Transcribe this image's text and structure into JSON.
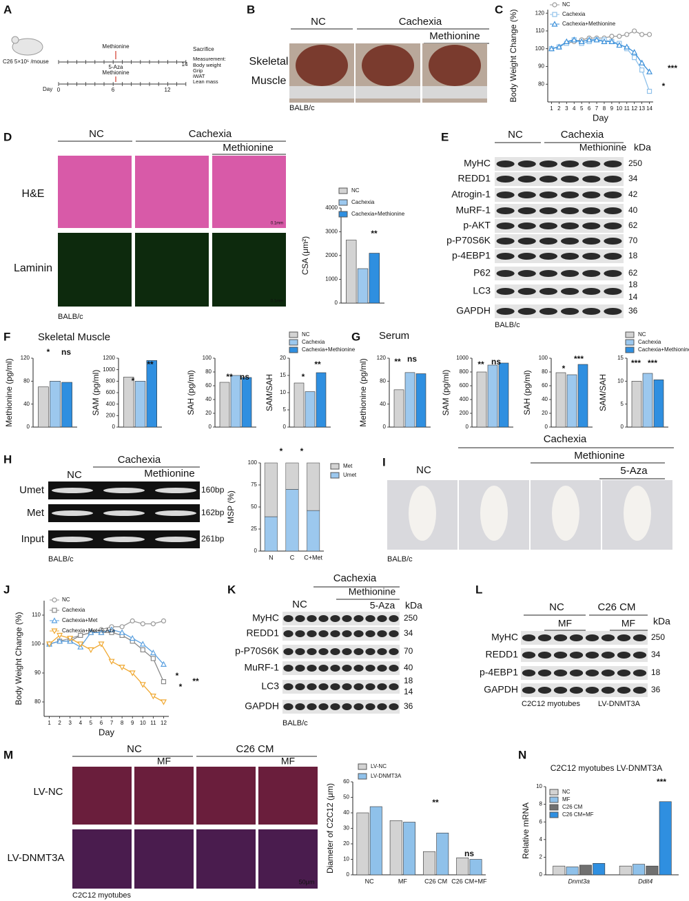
{
  "panel_letters": [
    "A",
    "B",
    "C",
    "D",
    "E",
    "F",
    "G",
    "H",
    "I",
    "J",
    "K",
    "L",
    "M",
    "N"
  ],
  "panel_a": {
    "tumor": "C26 5×10⁵ /mouse",
    "methionine": "Methionine",
    "aza": [
      "5-Aza",
      "Methionine"
    ],
    "day_label": "Day",
    "days": [
      0,
      6,
      12
    ],
    "end_day": 14,
    "sacrifice": "Sacrifice",
    "measurements": [
      "Measurement:",
      "Body weight",
      "Grip",
      "iWAT",
      "Lean mass"
    ]
  },
  "panel_b": {
    "groups": [
      "NC",
      "Cachexia"
    ],
    "treatment": "Methionine",
    "tissue": [
      "Skeletal",
      "Muscle"
    ],
    "strain": "BALB/c"
  },
  "panel_d": {
    "groups": [
      "NC",
      "Cachexia"
    ],
    "treatment": "Methionine",
    "rows": [
      "H&E",
      "Laminin"
    ],
    "scale": "0.1mm",
    "strain": "BALB/c"
  },
  "panel_e": {
    "groups": [
      "NC",
      "Cachexia"
    ],
    "treatment": "Methionine",
    "unit": "kDa",
    "strain": "BALB/c",
    "bands": [
      {
        "name": "MyHC",
        "kda": [
          250
        ]
      },
      {
        "name": "REDD1",
        "kda": [
          34
        ]
      },
      {
        "name": "Atrogin-1",
        "kda": [
          42
        ]
      },
      {
        "name": "MuRF-1",
        "kda": [
          40
        ]
      },
      {
        "name": "p-AKT",
        "kda": [
          62
        ]
      },
      {
        "name": "p-P70S6K",
        "kda": [
          70
        ]
      },
      {
        "name": "p-4EBP1",
        "kda": [
          18
        ]
      },
      {
        "name": "P62",
        "kda": [
          62
        ]
      },
      {
        "name": "LC3",
        "kda": [
          18,
          14
        ]
      },
      {
        "name": "GAPDH",
        "kda": [
          36
        ]
      }
    ]
  },
  "panel_f": {
    "title": "Skeletal Muscle"
  },
  "panel_g": {
    "title": "Serum"
  },
  "panel_h": {
    "nc": "NC",
    "cachexia": "Cachexia",
    "treatment": "Methionine",
    "strain": "BALB/c",
    "bands": [
      {
        "name": "Umet",
        "size": "160bp"
      },
      {
        "name": "Met",
        "size": "162bp"
      },
      {
        "name": "Input",
        "size": "261bp"
      }
    ]
  },
  "panel_i": {
    "cachexia": "Cachexia",
    "methionine": "Methionine",
    "nc": "NC",
    "aza": "5-Aza",
    "strain": "BALB/c"
  },
  "panel_k": {
    "nc": "NC",
    "cachexia": "Cachexia",
    "methionine": "Methionine",
    "aza": "5-Aza",
    "unit": "kDa",
    "strain": "BALB/c",
    "bands": [
      {
        "name": "MyHC",
        "kda": [
          250
        ]
      },
      {
        "name": "REDD1",
        "kda": [
          34
        ]
      },
      {
        "name": "p-P70S6K",
        "kda": [
          70
        ]
      },
      {
        "name": "MuRF-1",
        "kda": [
          40
        ]
      },
      {
        "name": "LC3",
        "kda": [
          18,
          14
        ]
      },
      {
        "name": "GAPDH",
        "kda": [
          36
        ]
      }
    ]
  },
  "panel_l": {
    "nc": "NC",
    "cm": "C26 CM",
    "mf": [
      "MF",
      "MF"
    ],
    "unit": "kDa",
    "footer": [
      "C2C12 myotubes",
      "LV-DNMT3A"
    ],
    "bands": [
      {
        "name": "MyHC",
        "kda": [
          250
        ]
      },
      {
        "name": "REDD1",
        "kda": [
          34
        ]
      },
      {
        "name": "p-4EBP1",
        "kda": [
          18
        ]
      },
      {
        "name": "GAPDH",
        "kda": [
          36
        ]
      }
    ]
  },
  "panel_m": {
    "groups": [
      "NC",
      "C26 CM"
    ],
    "mf": [
      "MF",
      "MF"
    ],
    "rows": [
      "LV-NC",
      "LV-DNMT3A"
    ],
    "scale": "50μm",
    "footer": "C2C12 myotubes"
  },
  "chart_data": [
    {
      "type": "line",
      "ylabel": "Body Weight Change (%)",
      "xlabel": "Day",
      "x": [
        1,
        2,
        3,
        4,
        5,
        6,
        7,
        8,
        9,
        10,
        11,
        12,
        13,
        14
      ],
      "xlim": [
        0.5,
        14.5
      ],
      "xticks": [
        1,
        2,
        3,
        4,
        5,
        6,
        7,
        8,
        9,
        10,
        11,
        12,
        13,
        14
      ],
      "ylim": [
        70,
        122
      ],
      "yticks": [
        80,
        90,
        100,
        110,
        120
      ],
      "series": [
        {
          "name": "NC",
          "color": "#999999",
          "marker": "circle",
          "values": [
            100,
            101,
            103,
            104,
            105,
            106,
            106,
            106,
            107,
            107,
            108,
            110,
            108,
            108
          ]
        },
        {
          "name": "Cachexia",
          "color": "#8fc1ea",
          "marker": "square",
          "values": [
            100,
            101,
            103,
            105,
            103,
            104,
            105,
            105,
            104,
            103,
            100,
            95,
            88,
            76
          ]
        },
        {
          "name": "Cachexia+Methionine",
          "color": "#3a8fd9",
          "marker": "triangle",
          "values": [
            100,
            101,
            104,
            105,
            104,
            105,
            105,
            104,
            104,
            102,
            101,
            98,
            92,
            87
          ]
        }
      ],
      "annotations": [
        "***",
        "*"
      ]
    },
    {
      "type": "bar",
      "ylabel": "CSA (μm²)",
      "categories": [
        null
      ],
      "ylim": [
        0,
        4000
      ],
      "yticks": [
        0,
        1000,
        2000,
        3000,
        4000
      ],
      "series": [
        {
          "name": "NC",
          "color": "#d3d3d3",
          "values": [
            2650
          ]
        },
        {
          "name": "Cachexia",
          "color": "#9cc8ee",
          "values": [
            1450
          ]
        },
        {
          "name": "Cachexia+Methionine",
          "color": "#2f8fe0",
          "values": [
            2100
          ]
        }
      ],
      "annotations": [
        "**"
      ]
    },
    {
      "type": "bar",
      "ylabel": "Methionine (pg/ml)",
      "categories": [
        null
      ],
      "ylim": [
        0,
        120
      ],
      "yticks": [
        0,
        40,
        80,
        120
      ],
      "series": [
        {
          "color": "#d3d3d3",
          "values": [
            70
          ]
        },
        {
          "color": "#9cc8ee",
          "values": [
            80
          ]
        },
        {
          "color": "#2f8fe0",
          "values": [
            78
          ]
        }
      ],
      "annotations": [
        "*",
        "ns"
      ]
    },
    {
      "type": "bar",
      "ylabel": "SAM (pg/ml)",
      "categories": [
        null
      ],
      "ylim": [
        0,
        1200
      ],
      "yticks": [
        0,
        200,
        400,
        600,
        800,
        1000,
        1200
      ],
      "series": [
        {
          "color": "#d3d3d3",
          "values": [
            870
          ]
        },
        {
          "color": "#9cc8ee",
          "values": [
            800
          ]
        },
        {
          "color": "#2f8fe0",
          "values": [
            1160
          ]
        }
      ],
      "annotations": [
        "*",
        "**"
      ]
    },
    {
      "type": "bar",
      "ylabel": "SAH (pg/ml)",
      "categories": [
        null
      ],
      "ylim": [
        0,
        100
      ],
      "yticks": [
        0,
        20,
        40,
        60,
        80,
        100
      ],
      "series": [
        {
          "color": "#d3d3d3",
          "values": [
            65
          ]
        },
        {
          "color": "#9cc8ee",
          "values": [
            75
          ]
        },
        {
          "color": "#2f8fe0",
          "values": [
            72
          ]
        }
      ],
      "annotations": [
        "**",
        "ns"
      ]
    },
    {
      "type": "bar",
      "ylabel": "SAM/SAH",
      "categories": [
        null
      ],
      "ylim": [
        0,
        20
      ],
      "yticks": [
        0,
        5,
        10,
        15,
        20
      ],
      "series": [
        {
          "name": "NC",
          "color": "#d3d3d3",
          "values": [
            12.8
          ]
        },
        {
          "name": "Cachexia",
          "color": "#9cc8ee",
          "values": [
            10.3
          ]
        },
        {
          "name": "Cachexia+Methionine",
          "color": "#2f8fe0",
          "values": [
            15.8
          ]
        }
      ],
      "annotations": [
        "*",
        "**"
      ]
    },
    {
      "type": "bar",
      "ylabel": "Methionine (pg/ml)",
      "categories": [
        null
      ],
      "ylim": [
        0,
        120
      ],
      "yticks": [
        0,
        40,
        80,
        120
      ],
      "series": [
        {
          "color": "#d3d3d3",
          "values": [
            65
          ]
        },
        {
          "color": "#9cc8ee",
          "values": [
            95
          ]
        },
        {
          "color": "#2f8fe0",
          "values": [
            93
          ]
        }
      ],
      "annotations": [
        "**",
        "ns"
      ]
    },
    {
      "type": "bar",
      "ylabel": "SAM (pg/ml)",
      "categories": [
        null
      ],
      "ylim": [
        0,
        1000
      ],
      "yticks": [
        0,
        200,
        400,
        600,
        800,
        1000
      ],
      "series": [
        {
          "color": "#d3d3d3",
          "values": [
            800
          ]
        },
        {
          "color": "#9cc8ee",
          "values": [
            900
          ]
        },
        {
          "color": "#2f8fe0",
          "values": [
            930
          ]
        }
      ],
      "annotations": [
        "**",
        "ns"
      ]
    },
    {
      "type": "bar",
      "ylabel": "SAH (pg/ml)",
      "categories": [
        null
      ],
      "ylim": [
        0,
        100
      ],
      "yticks": [
        0,
        20,
        40,
        60,
        80,
        100
      ],
      "series": [
        {
          "color": "#d3d3d3",
          "values": [
            79
          ]
        },
        {
          "color": "#9cc8ee",
          "values": [
            76
          ]
        },
        {
          "color": "#2f8fe0",
          "values": [
            91
          ]
        }
      ],
      "annotations": [
        "*",
        "***"
      ]
    },
    {
      "type": "bar",
      "ylabel": "SAM/SAH",
      "categories": [
        null
      ],
      "ylim": [
        0,
        15
      ],
      "yticks": [
        0,
        5,
        10,
        15
      ],
      "series": [
        {
          "name": "NC",
          "color": "#d3d3d3",
          "values": [
            10
          ]
        },
        {
          "name": "Cachexia",
          "color": "#9cc8ee",
          "values": [
            11.7
          ]
        },
        {
          "name": "Cachexia+Methionine",
          "color": "#2f8fe0",
          "values": [
            10.3
          ]
        }
      ],
      "annotations": [
        "***",
        "***"
      ]
    },
    {
      "type": "stacked_bar",
      "ylabel": "MSP (%)",
      "categories": [
        "N",
        "C",
        "C+Met"
      ],
      "ylim": [
        0,
        100
      ],
      "yticks": [
        0,
        25,
        50,
        75,
        100
      ],
      "series": [
        {
          "name": "Umet",
          "color": "#9cc8ee",
          "values": [
            39,
            70,
            46
          ]
        },
        {
          "name": "Met",
          "color": "#d3d3d3",
          "values": [
            61,
            30,
            54
          ]
        }
      ],
      "annotations": [
        "*",
        "*"
      ]
    },
    {
      "type": "line",
      "ylabel": "Body Weight Change (%)",
      "xlabel": "Day",
      "x": [
        1,
        2,
        3,
        4,
        5,
        6,
        7,
        8,
        9,
        10,
        11,
        12
      ],
      "xlim": [
        0.5,
        12.5
      ],
      "xticks": [
        1,
        2,
        3,
        4,
        5,
        6,
        7,
        8,
        9,
        10,
        11,
        12
      ],
      "ylim": [
        75,
        115
      ],
      "yticks": [
        80,
        90,
        100,
        110
      ],
      "series": [
        {
          "name": "NC",
          "color": "#999999",
          "marker": "circle",
          "values": [
            100,
            101,
            102,
            103,
            104,
            105,
            106,
            106,
            108,
            107,
            107,
            108
          ]
        },
        {
          "name": "Cachexia",
          "color": "#888888",
          "marker": "square",
          "values": [
            100,
            101,
            101,
            103,
            104,
            104,
            104,
            103,
            101,
            98,
            95,
            87
          ]
        },
        {
          "name": "Cachexia+Met",
          "color": "#5aa0e0",
          "marker": "triangle",
          "values": [
            100,
            101,
            101,
            99,
            104,
            104,
            105,
            104,
            102,
            100,
            97,
            93
          ]
        },
        {
          "name": "Cachexia+Met+5-Aza",
          "color": "#f0a830",
          "marker": "triangle-down",
          "values": [
            100,
            103,
            102,
            100,
            98,
            100,
            94,
            92,
            90,
            86,
            82,
            80
          ]
        }
      ],
      "annotations": [
        "*",
        "*",
        "**"
      ]
    },
    {
      "type": "bar",
      "ylabel": "Diameter of C2C12 (μm)",
      "categories": [
        "NC",
        "MF",
        "C26 CM",
        "C26 CM+MF"
      ],
      "ylim": [
        0,
        60
      ],
      "yticks": [
        0,
        10,
        20,
        30,
        40,
        50,
        60
      ],
      "series": [
        {
          "name": "LV-NC",
          "color": "#d3d3d3",
          "values": [
            40,
            35,
            15,
            11
          ]
        },
        {
          "name": "LV-DNMT3A",
          "color": "#8fc1ea",
          "values": [
            44,
            34,
            27,
            10
          ]
        }
      ],
      "annotations": [
        "**",
        "ns"
      ]
    },
    {
      "type": "bar",
      "title": "C2C12 myotubes  LV-DNMT3A",
      "ylabel": "Relative mRNA",
      "categories": [
        "Dnmt3a",
        "Ddit4"
      ],
      "ylim": [
        0,
        10
      ],
      "yticks": [
        0,
        2,
        4,
        6,
        8,
        10
      ],
      "series": [
        {
          "name": "NC",
          "color": "#d3d3d3",
          "values": [
            1.0,
            1.0
          ]
        },
        {
          "name": "MF",
          "color": "#8fc1ea",
          "values": [
            0.9,
            1.2
          ]
        },
        {
          "name": "C26 CM",
          "color": "#707070",
          "values": [
            1.1,
            1.0
          ]
        },
        {
          "name": "C26 CM+MF",
          "color": "#2f8fe0",
          "values": [
            1.3,
            8.3
          ]
        }
      ],
      "annotations": [
        "***"
      ]
    }
  ]
}
